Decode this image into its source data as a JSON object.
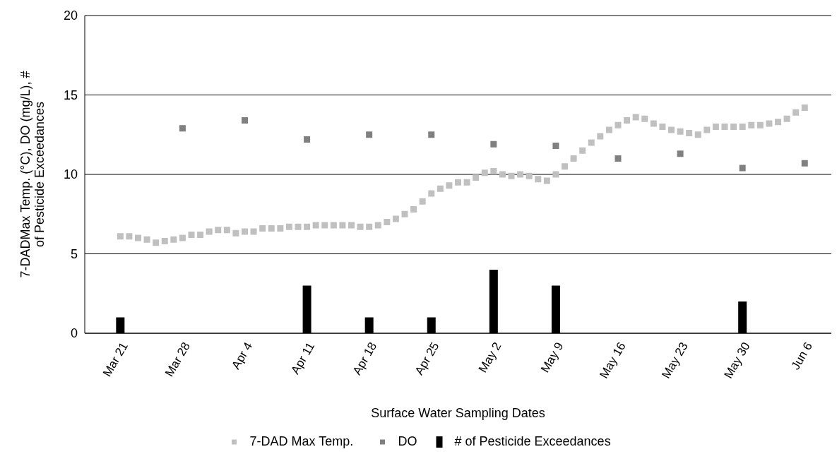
{
  "chart_data": {
    "type": "scatter",
    "xlabel": "Surface Water Sampling Dates",
    "ylabel": "7-DADMax Temp. (°C), DO (mg/L), # of Pesticide Exceedances",
    "xlim": [
      "--03-17",
      "--06-09"
    ],
    "xticks": [
      {
        "value": "--03-21",
        "label": "Mar 21"
      },
      {
        "value": "--03-28",
        "label": "Mar 28"
      },
      {
        "value": "--04-04",
        "label": "Apr 4"
      },
      {
        "value": "--04-11",
        "label": "Apr 11"
      },
      {
        "value": "--04-18",
        "label": "Apr 18"
      },
      {
        "value": "--04-25",
        "label": "Apr 25"
      },
      {
        "value": "--05-02",
        "label": "May 2"
      },
      {
        "value": "--05-09",
        "label": "May 9"
      },
      {
        "value": "--05-16",
        "label": "May 16"
      },
      {
        "value": "--05-23",
        "label": "May 23"
      },
      {
        "value": "--05-30",
        "label": "May 30"
      },
      {
        "value": "--06-06",
        "label": "Jun 6"
      }
    ],
    "ylim": [
      0,
      20
    ],
    "yticks": [
      0,
      5,
      10,
      15,
      20
    ],
    "grid": "y",
    "legend": "bottom",
    "series": [
      {
        "name": "7-DAD Max Temp.",
        "marker": "square",
        "color": "#c0c0c0",
        "x": [
          "--03-21",
          "--03-22",
          "--03-23",
          "--03-24",
          "--03-25",
          "--03-26",
          "--03-27",
          "--03-28",
          "--03-29",
          "--03-30",
          "--03-31",
          "--04-01",
          "--04-02",
          "--04-03",
          "--04-04",
          "--04-05",
          "--04-06",
          "--04-07",
          "--04-08",
          "--04-09",
          "--04-10",
          "--04-11",
          "--04-12",
          "--04-13",
          "--04-14",
          "--04-15",
          "--04-16",
          "--04-17",
          "--04-18",
          "--04-19",
          "--04-20",
          "--04-21",
          "--04-22",
          "--04-23",
          "--04-24",
          "--04-25",
          "--04-26",
          "--04-27",
          "--04-28",
          "--04-29",
          "--04-30",
          "--05-01",
          "--05-02",
          "--05-03",
          "--05-04",
          "--05-05",
          "--05-06",
          "--05-07",
          "--05-08",
          "--05-09",
          "--05-10",
          "--05-11",
          "--05-12",
          "--05-13",
          "--05-14",
          "--05-15",
          "--05-16",
          "--05-17",
          "--05-18",
          "--05-19",
          "--05-20",
          "--05-21",
          "--05-22",
          "--05-23",
          "--05-24",
          "--05-25",
          "--05-26",
          "--05-27",
          "--05-28",
          "--05-29",
          "--05-30",
          "--05-31",
          "--06-01",
          "--06-02",
          "--06-03",
          "--06-04",
          "--06-05",
          "--06-06"
        ],
        "values": [
          6.1,
          6.1,
          6.0,
          5.9,
          5.7,
          5.8,
          5.9,
          6.0,
          6.2,
          6.2,
          6.4,
          6.5,
          6.5,
          6.3,
          6.4,
          6.4,
          6.6,
          6.6,
          6.6,
          6.7,
          6.7,
          6.7,
          6.8,
          6.8,
          6.8,
          6.8,
          6.8,
          6.7,
          6.7,
          6.8,
          7.0,
          7.2,
          7.5,
          7.8,
          8.3,
          8.8,
          9.1,
          9.3,
          9.5,
          9.5,
          9.8,
          10.1,
          10.2,
          10.0,
          9.9,
          10.0,
          9.9,
          9.7,
          9.6,
          10.0,
          10.5,
          11.0,
          11.5,
          12.0,
          12.4,
          12.8,
          13.1,
          13.4,
          13.6,
          13.5,
          13.2,
          13.0,
          12.8,
          12.7,
          12.6,
          12.5,
          12.8,
          13.0,
          13.0,
          13.0,
          13.0,
          13.1,
          13.1,
          13.2,
          13.3,
          13.5,
          13.9,
          14.2
        ]
      },
      {
        "name": "DO",
        "marker": "square",
        "color": "#808080",
        "x": [
          "--03-28",
          "--04-04",
          "--04-11",
          "--04-18",
          "--04-25",
          "--05-02",
          "--05-09",
          "--05-16",
          "--05-23",
          "--05-30",
          "--06-06"
        ],
        "values": [
          12.9,
          13.4,
          12.2,
          12.5,
          12.5,
          11.9,
          11.8,
          11.0,
          11.3,
          10.4,
          10.7
        ]
      },
      {
        "name": "# of Pesticide Exceedances",
        "type": "bar",
        "color": "#000000",
        "x": [
          "--03-21",
          "--04-11",
          "--04-18",
          "--04-25",
          "--05-02",
          "--05-09",
          "--05-30"
        ],
        "values": [
          1,
          3,
          1,
          1,
          4,
          3,
          2
        ]
      }
    ]
  }
}
